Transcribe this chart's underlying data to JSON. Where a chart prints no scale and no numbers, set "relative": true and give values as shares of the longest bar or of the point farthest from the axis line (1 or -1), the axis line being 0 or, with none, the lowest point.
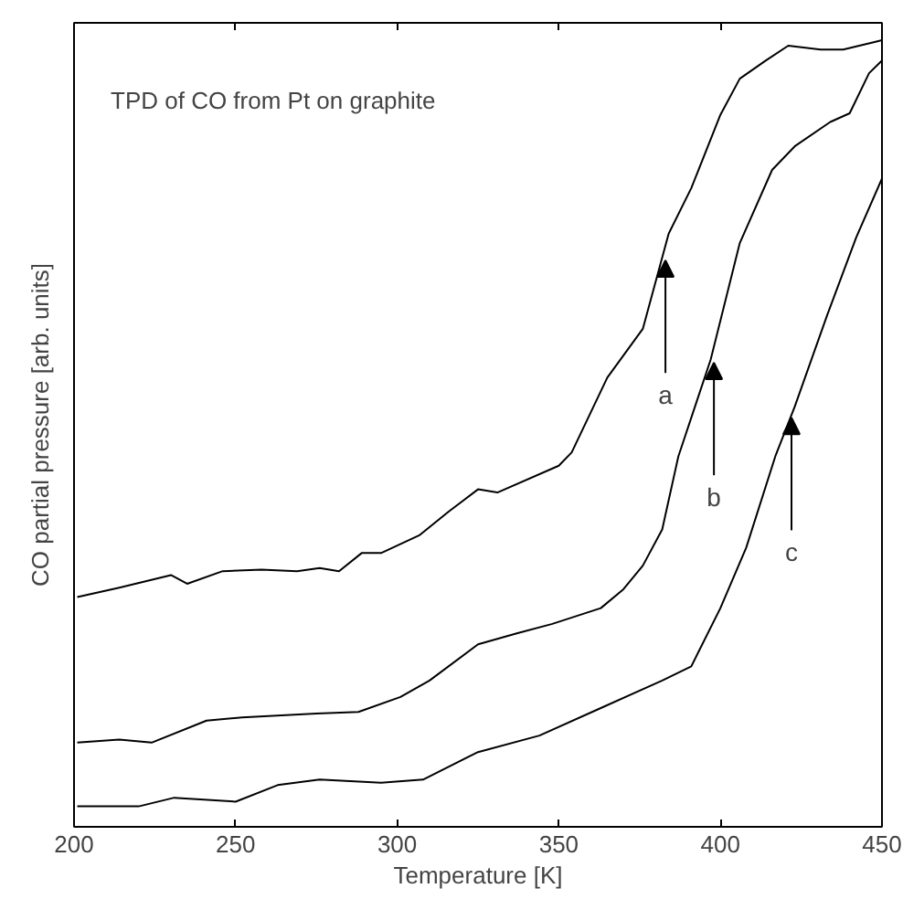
{
  "chart_data": {
    "type": "line",
    "title": "TPD of CO from Pt on graphite",
    "xlabel": "Temperature [K]",
    "ylabel": "CO partial pressure [arb. units]",
    "relative": true,
    "xlim": [
      200,
      450
    ],
    "xticks": [
      200,
      250,
      300,
      350,
      400,
      450
    ],
    "line_style": "solid",
    "series": [
      {
        "color": "#000000",
        "x": [
          201,
          214,
          230,
          235,
          246,
          258,
          269,
          276,
          282,
          289,
          295,
          307,
          316,
          325,
          331,
          350,
          354,
          365,
          376,
          384,
          391,
          400,
          406,
          414,
          421,
          431,
          438,
          448,
          450
        ],
        "values": [
          0.292,
          0.304,
          0.32,
          0.309,
          0.325,
          0.327,
          0.325,
          0.329,
          0.325,
          0.348,
          0.348,
          0.371,
          0.401,
          0.429,
          0.425,
          0.459,
          0.476,
          0.571,
          0.633,
          0.754,
          0.812,
          0.905,
          0.951,
          0.974,
          0.993,
          0.988,
          0.988,
          0.998,
          1.0
        ]
      },
      {
        "color": "#000000",
        "x": [
          201,
          214,
          224,
          241,
          252,
          275,
          288,
          301,
          310,
          325,
          337,
          348,
          363,
          370,
          376,
          382,
          387,
          397,
          406,
          416,
          423,
          434,
          440,
          446,
          450
        ],
        "values": [
          0.107,
          0.111,
          0.107,
          0.135,
          0.139,
          0.144,
          0.146,
          0.165,
          0.186,
          0.232,
          0.246,
          0.258,
          0.278,
          0.302,
          0.332,
          0.378,
          0.471,
          0.594,
          0.742,
          0.835,
          0.865,
          0.896,
          0.907,
          0.958,
          0.974
        ]
      },
      {
        "color": "#000000",
        "x": [
          201,
          220,
          231,
          250,
          263,
          276,
          295,
          308,
          325,
          344,
          363,
          382,
          391,
          400,
          408,
          417,
          423,
          433,
          442,
          450
        ],
        "values": [
          0.026,
          0.026,
          0.037,
          0.032,
          0.053,
          0.06,
          0.056,
          0.06,
          0.095,
          0.116,
          0.151,
          0.186,
          0.204,
          0.278,
          0.355,
          0.471,
          0.534,
          0.65,
          0.749,
          0.824
        ]
      }
    ],
    "annotations": [
      {
        "text": "a",
        "x": 383,
        "y": 0.72
      },
      {
        "text": "b",
        "x": 398,
        "y": 0.59
      },
      {
        "text": "c",
        "x": 422,
        "y": 0.52
      }
    ]
  }
}
